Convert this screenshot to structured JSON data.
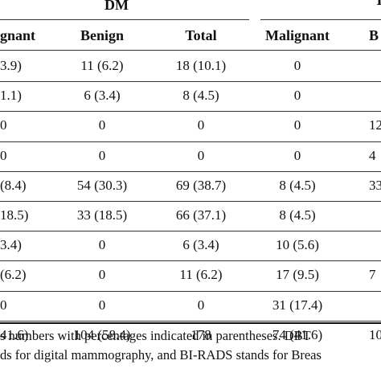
{
  "table": {
    "group_dm": "DM",
    "group_dbt_partial": "T",
    "columns": [
      "gnant",
      "Benign",
      "Total",
      "Malignant",
      "B"
    ],
    "rows": [
      [
        "3.9)",
        "11 (6.2)",
        "18 (10.1)",
        "0",
        ""
      ],
      [
        "1.1)",
        "6 (3.4)",
        "8 (4.5)",
        "0",
        ""
      ],
      [
        "0",
        "0",
        "0",
        "0",
        "12"
      ],
      [
        "0",
        "0",
        "0",
        "0",
        "4"
      ],
      [
        "(8.4)",
        "54 (30.3)",
        "69 (38.7)",
        "8 (4.5)",
        "33"
      ],
      [
        "18.5)",
        "33 (18.5)",
        "66 (37.1)",
        "8 (4.5)",
        ""
      ],
      [
        "3.4)",
        "0",
        "6 (3.4)",
        "10 (5.6)",
        ""
      ],
      [
        "(6.2)",
        "0",
        "11 (6.2)",
        "17 (9.5)",
        "7"
      ],
      [
        "0",
        "0",
        "0",
        "31 (17.4)",
        ""
      ],
      [
        "41.6)",
        "104 (58.4)",
        "178",
        "74 (41.6)",
        "10"
      ]
    ]
  },
  "footnote": {
    "line1": "s numbers with percentages indicated in parentheses. DBT",
    "line2": "ds for digital mammography, and BI-RADS stands for Breas"
  }
}
